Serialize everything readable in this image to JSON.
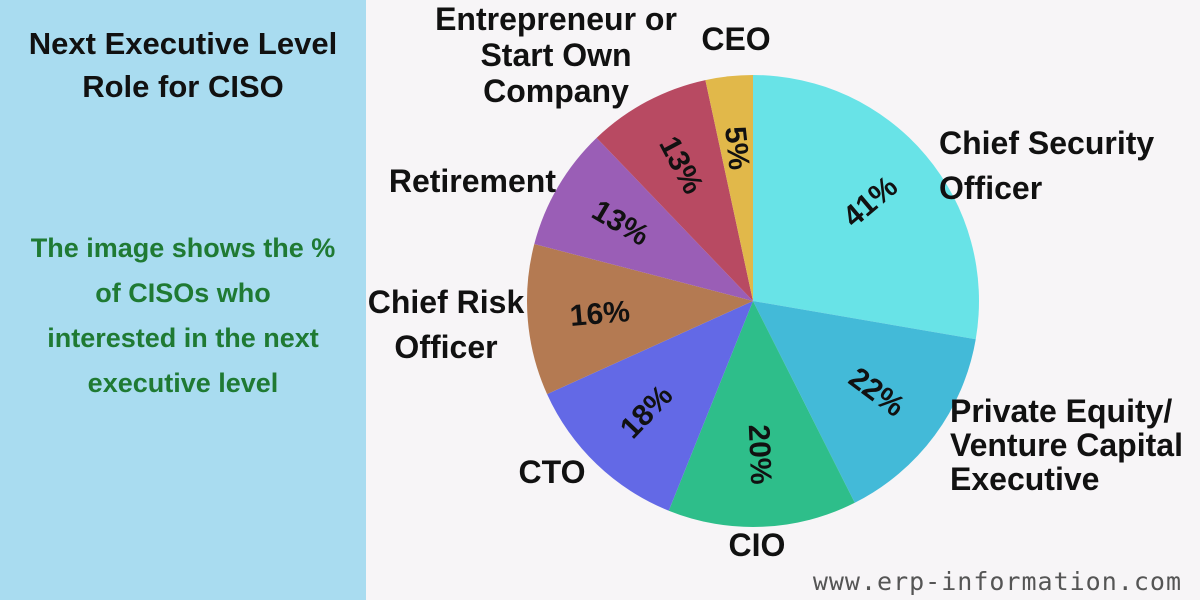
{
  "title_lines": [
    "Next Executive Level",
    "Role for CISO"
  ],
  "description_lines": [
    "The image shows the %",
    "of CISOs who",
    "interested in the next",
    "executive level"
  ],
  "watermark": "www.erp-information.com",
  "colors": {
    "panel_background": "#a9dcf0",
    "page_background": "#f7f5f7",
    "description_text": "#1f7a33"
  },
  "chart_data": {
    "type": "pie",
    "unit": "%",
    "slices": [
      {
        "label_lines": [
          "Chief Security",
          "Officer"
        ],
        "value": 41,
        "display": "41%",
        "color": "#68e3e7"
      },
      {
        "label_lines": [
          "Private Equity/",
          "Venture Capital",
          "Executive"
        ],
        "value": 22,
        "display": "22%",
        "color": "#43bad8"
      },
      {
        "label_lines": [
          "CIO"
        ],
        "value": 20,
        "display": "20%",
        "color": "#2ebe8a"
      },
      {
        "label_lines": [
          "CTO"
        ],
        "value": 18,
        "display": "18%",
        "color": "#6369e6"
      },
      {
        "label_lines": [
          "Chief Risk",
          "Officer"
        ],
        "value": 16,
        "display": "16%",
        "color": "#b47a52"
      },
      {
        "label_lines": [
          "Retirement"
        ],
        "value": 13,
        "display": "13%",
        "color": "#9a5eb6"
      },
      {
        "label_lines": [
          "Entrepreneur or",
          "Start Own",
          "Company"
        ],
        "value": 13,
        "display": "13%",
        "color": "#b84a62"
      },
      {
        "label_lines": [
          "CEO"
        ],
        "value": 5,
        "display": "5%",
        "color": "#e1b84a"
      }
    ]
  }
}
